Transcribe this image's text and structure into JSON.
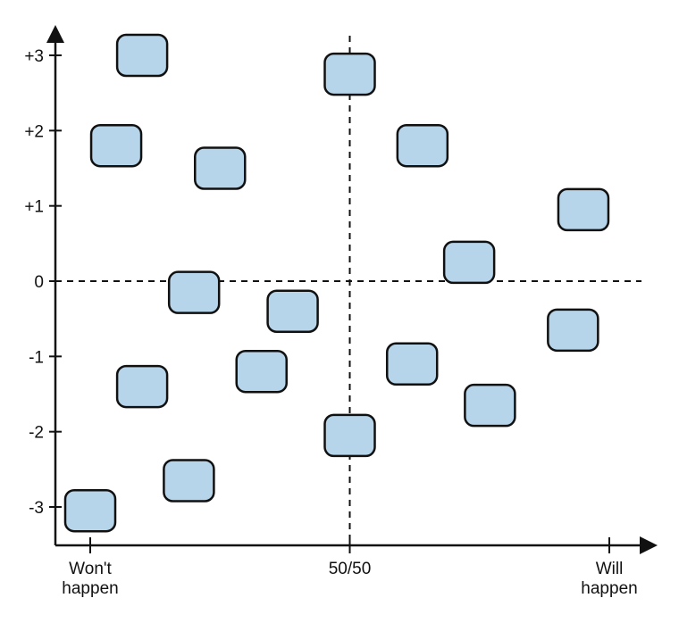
{
  "diagram": {
    "y_ticks": [
      {
        "value": 3,
        "label": "+3"
      },
      {
        "value": 2,
        "label": "+2"
      },
      {
        "value": 1,
        "label": "+1"
      },
      {
        "value": 0,
        "label": "0"
      },
      {
        "value": -1,
        "label": "-1"
      },
      {
        "value": -2,
        "label": "-2"
      },
      {
        "value": -3,
        "label": "-3"
      }
    ],
    "x_ticks": [
      {
        "value": 0,
        "lines": [
          "Won't",
          "happen"
        ]
      },
      {
        "value": 50,
        "lines": [
          "50/50"
        ]
      },
      {
        "value": 100,
        "lines": [
          "Will",
          "happen"
        ]
      }
    ],
    "card_fill": "#b7d5ea",
    "card_stroke": "#111111",
    "cards": [
      {
        "x": 10,
        "y": 3.0
      },
      {
        "x": 5,
        "y": 1.8
      },
      {
        "x": 25,
        "y": 1.5
      },
      {
        "x": 50,
        "y": 2.75
      },
      {
        "x": 64,
        "y": 1.8
      },
      {
        "x": 95,
        "y": 0.95
      },
      {
        "x": 73,
        "y": 0.25
      },
      {
        "x": 20,
        "y": -0.15
      },
      {
        "x": 39,
        "y": -0.4
      },
      {
        "x": 93,
        "y": -0.65
      },
      {
        "x": 10,
        "y": -1.4
      },
      {
        "x": 33,
        "y": -1.2
      },
      {
        "x": 62,
        "y": -1.1
      },
      {
        "x": 77,
        "y": -1.65
      },
      {
        "x": 50,
        "y": -2.05
      },
      {
        "x": 19,
        "y": -2.65
      },
      {
        "x": 0,
        "y": -3.05
      }
    ]
  }
}
